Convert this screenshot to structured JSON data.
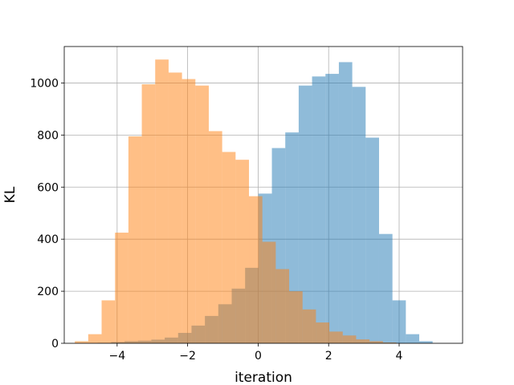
{
  "chart_data": {
    "type": "histogram",
    "title": "",
    "xlabel": "iteration",
    "ylabel": "KL",
    "xlim": [
      -5.5,
      5.8
    ],
    "ylim": [
      0,
      1140
    ],
    "xticks": [
      -4,
      -2,
      0,
      2,
      4
    ],
    "xtick_labels": [
      "−4",
      "−2",
      "0",
      "2",
      "4"
    ],
    "yticks": [
      0,
      200,
      400,
      600,
      800,
      1000
    ],
    "ytick_labels": [
      "0",
      "200",
      "400",
      "600",
      "800",
      "1000"
    ],
    "grid": true,
    "legend": "none",
    "series": [
      {
        "color": "#1f77b4",
        "alpha": 0.5,
        "bin_edges": [
          -4.55,
          -4.17,
          -3.79,
          -3.41,
          -3.03,
          -2.65,
          -2.27,
          -1.89,
          -1.51,
          -1.13,
          -0.75,
          -0.37,
          0.01,
          0.39,
          0.77,
          1.15,
          1.53,
          1.91,
          2.29,
          2.67,
          3.05,
          3.43,
          3.81,
          4.19,
          4.57,
          4.95,
          5.33
        ],
        "counts": [
          2,
          5,
          8,
          10,
          14,
          22,
          40,
          68,
          105,
          150,
          210,
          290,
          575,
          750,
          810,
          990,
          1025,
          1035,
          1080,
          985,
          790,
          420,
          165,
          35,
          8,
          0
        ]
      },
      {
        "color": "#ff7f0e",
        "alpha": 0.5,
        "bin_edges": [
          -5.2,
          -4.82,
          -4.44,
          -4.06,
          -3.68,
          -3.3,
          -2.92,
          -2.54,
          -2.16,
          -1.78,
          -1.4,
          -1.02,
          -0.64,
          -0.26,
          0.12,
          0.5,
          0.88,
          1.26,
          1.64,
          2.02,
          2.4,
          2.78,
          3.16,
          3.54,
          3.92,
          4.3
        ],
        "counts": [
          8,
          35,
          165,
          425,
          795,
          995,
          1090,
          1040,
          1015,
          990,
          815,
          735,
          705,
          565,
          390,
          285,
          200,
          130,
          80,
          45,
          30,
          15,
          8,
          3,
          0
        ]
      }
    ]
  }
}
